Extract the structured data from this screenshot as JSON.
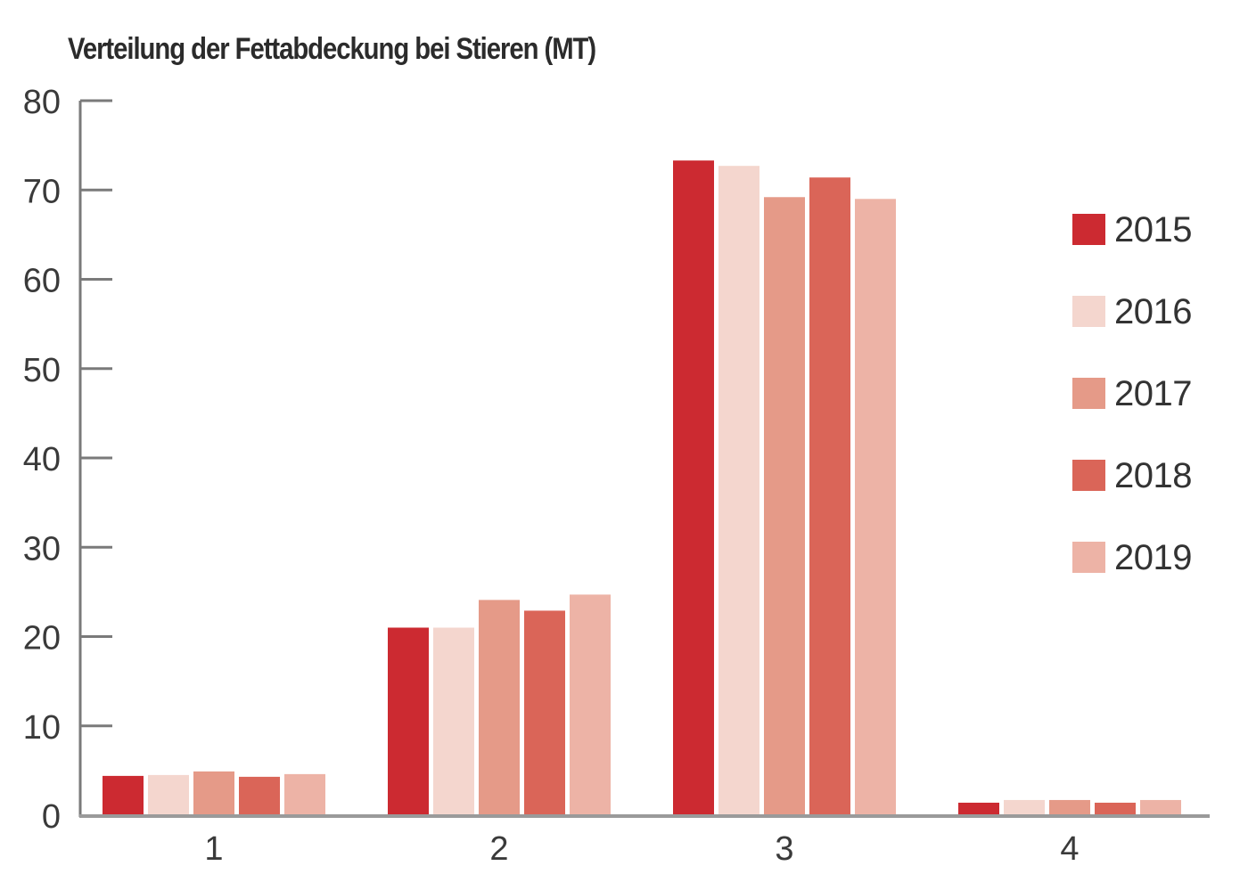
{
  "chart_data": {
    "type": "bar",
    "title": "Verteilung der Fettabdeckung bei Stieren (MT)",
    "xlabel": "",
    "ylabel": "",
    "categories": [
      "1",
      "2",
      "3",
      "4"
    ],
    "series": [
      {
        "name": "2015",
        "color": "#CC2A31",
        "values": [
          4.4,
          21.0,
          73.3,
          1.4
        ]
      },
      {
        "name": "2016",
        "color": "#F4D6CE",
        "values": [
          4.5,
          21.0,
          72.7,
          1.7
        ]
      },
      {
        "name": "2017",
        "color": "#E59A88",
        "values": [
          4.9,
          24.1,
          69.2,
          1.7
        ]
      },
      {
        "name": "2018",
        "color": "#DA6558",
        "values": [
          4.3,
          22.9,
          71.4,
          1.4
        ]
      },
      {
        "name": "2019",
        "color": "#EDB3A6",
        "values": [
          4.6,
          24.7,
          69.0,
          1.7
        ]
      }
    ],
    "ylim": [
      0,
      80
    ],
    "yticks": [
      0,
      10,
      20,
      30,
      40,
      50,
      60,
      70,
      80
    ],
    "grid": false,
    "legend_position": "right"
  },
  "legend": {
    "items": [
      {
        "label": "2015",
        "color": "#CC2A31"
      },
      {
        "label": "2016",
        "color": "#F4D6CE"
      },
      {
        "label": "2017",
        "color": "#E59A88"
      },
      {
        "label": "2018",
        "color": "#DA6558"
      },
      {
        "label": "2019",
        "color": "#EDB3A6"
      }
    ]
  }
}
